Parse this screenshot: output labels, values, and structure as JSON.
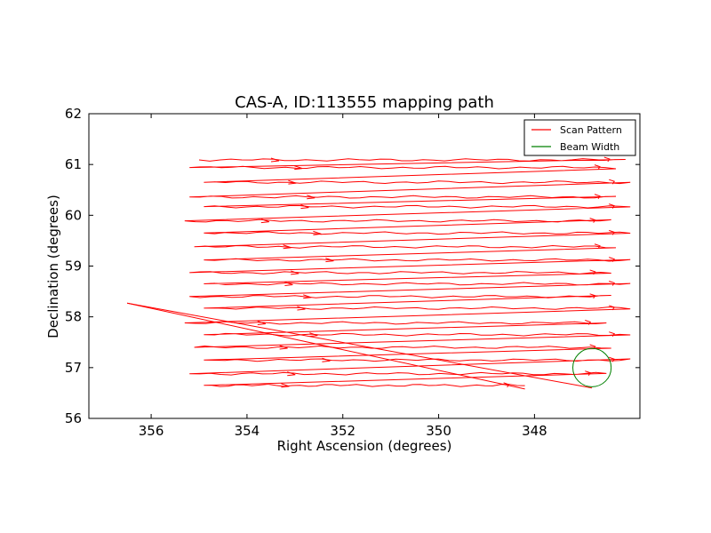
{
  "chart_data": {
    "type": "line",
    "title": "CAS-A, ID:113555 mapping path",
    "xlabel": "Right Ascension (degrees)",
    "ylabel": "Declination (degrees)",
    "xlim": [
      357.3,
      345.8
    ],
    "ylim": [
      56,
      62
    ],
    "x_inverted": true,
    "xticks": [
      {
        "value": 356,
        "label": "356"
      },
      {
        "value": 354,
        "label": "354"
      },
      {
        "value": 352,
        "label": "352"
      },
      {
        "value": 350,
        "label": "350"
      },
      {
        "value": 348,
        "label": "348"
      }
    ],
    "yticks": [
      {
        "value": 56,
        "label": "56"
      },
      {
        "value": 57,
        "label": "57"
      },
      {
        "value": 58,
        "label": "58"
      },
      {
        "value": 59,
        "label": "59"
      },
      {
        "value": 60,
        "label": "60"
      },
      {
        "value": 61,
        "label": "61"
      },
      {
        "value": 62,
        "label": "62"
      }
    ],
    "grid": false,
    "legend_position": "top-right",
    "series": [
      {
        "name": "Scan Pattern",
        "color": "#ff0000",
        "rows": [
          {
            "y": 61.09,
            "x_start": 355.0,
            "x_end": 346.1
          },
          {
            "y": 60.94,
            "x_start": 355.2,
            "x_end": 346.3
          },
          {
            "y": 60.65,
            "x_start": 354.9,
            "x_end": 346.0
          },
          {
            "y": 60.36,
            "x_start": 355.2,
            "x_end": 346.3
          },
          {
            "y": 60.17,
            "x_start": 354.9,
            "x_end": 346.0
          },
          {
            "y": 59.89,
            "x_start": 355.3,
            "x_end": 346.4
          },
          {
            "y": 59.65,
            "x_start": 354.9,
            "x_end": 346.0
          },
          {
            "y": 59.38,
            "x_start": 355.1,
            "x_end": 346.3
          },
          {
            "y": 59.12,
            "x_start": 354.9,
            "x_end": 346.0
          },
          {
            "y": 58.87,
            "x_start": 355.2,
            "x_end": 346.4
          },
          {
            "y": 58.65,
            "x_start": 354.9,
            "x_end": 346.0
          },
          {
            "y": 58.4,
            "x_start": 355.2,
            "x_end": 346.4
          },
          {
            "y": 58.17,
            "x_start": 354.9,
            "x_end": 346.0
          },
          {
            "y": 57.88,
            "x_start": 355.3,
            "x_end": 346.5
          },
          {
            "y": 57.65,
            "x_start": 354.9,
            "x_end": 346.0
          },
          {
            "y": 57.4,
            "x_start": 355.1,
            "x_end": 346.4
          },
          {
            "y": 57.15,
            "x_start": 354.9,
            "x_end": 346.0
          },
          {
            "y": 56.88,
            "x_start": 355.2,
            "x_end": 346.5
          },
          {
            "y": 56.65,
            "x_start": 354.9,
            "x_end": 348.2
          }
        ],
        "diagonal": [
          [
            356.5,
            58.27
          ],
          [
            346.8,
            56.6
          ]
        ]
      },
      {
        "name": "Beam Width",
        "color": "#008000",
        "circle": {
          "cx": 346.8,
          "cy": 57.0,
          "r_x": 0.4
        }
      }
    ]
  }
}
